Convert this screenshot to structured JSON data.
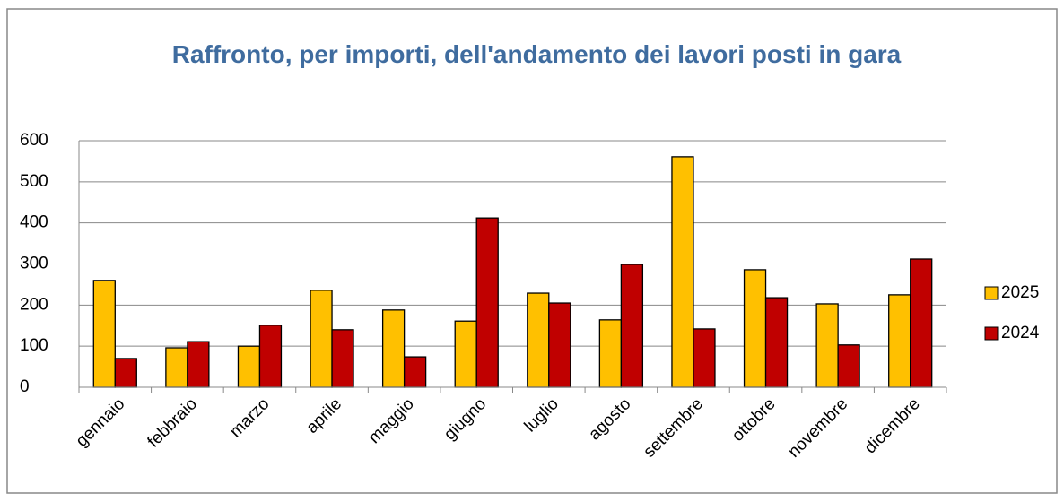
{
  "chart_data": {
    "type": "bar",
    "title": "Raffronto, per importi, dell'andamento dei lavori posti in gara",
    "categories": [
      "gennaio",
      "febbraio",
      "marzo",
      "aprile",
      "maggio",
      "giugno",
      "luglio",
      "agosto",
      "settembre",
      "ottobre",
      "novembre",
      "dicembre"
    ],
    "series": [
      {
        "name": "2025",
        "color": "#ffc000",
        "values": [
          260,
          96,
          100,
          236,
          188,
          161,
          229,
          164,
          561,
          286,
          203,
          225
        ]
      },
      {
        "name": "2024",
        "color": "#c00000",
        "values": [
          70,
          111,
          151,
          140,
          74,
          412,
          205,
          299,
          142,
          218,
          103,
          312
        ]
      }
    ],
    "ylim": [
      0,
      600
    ],
    "yticks": [
      0,
      100,
      200,
      300,
      400,
      500,
      600
    ],
    "grid": true,
    "legend": "right"
  }
}
